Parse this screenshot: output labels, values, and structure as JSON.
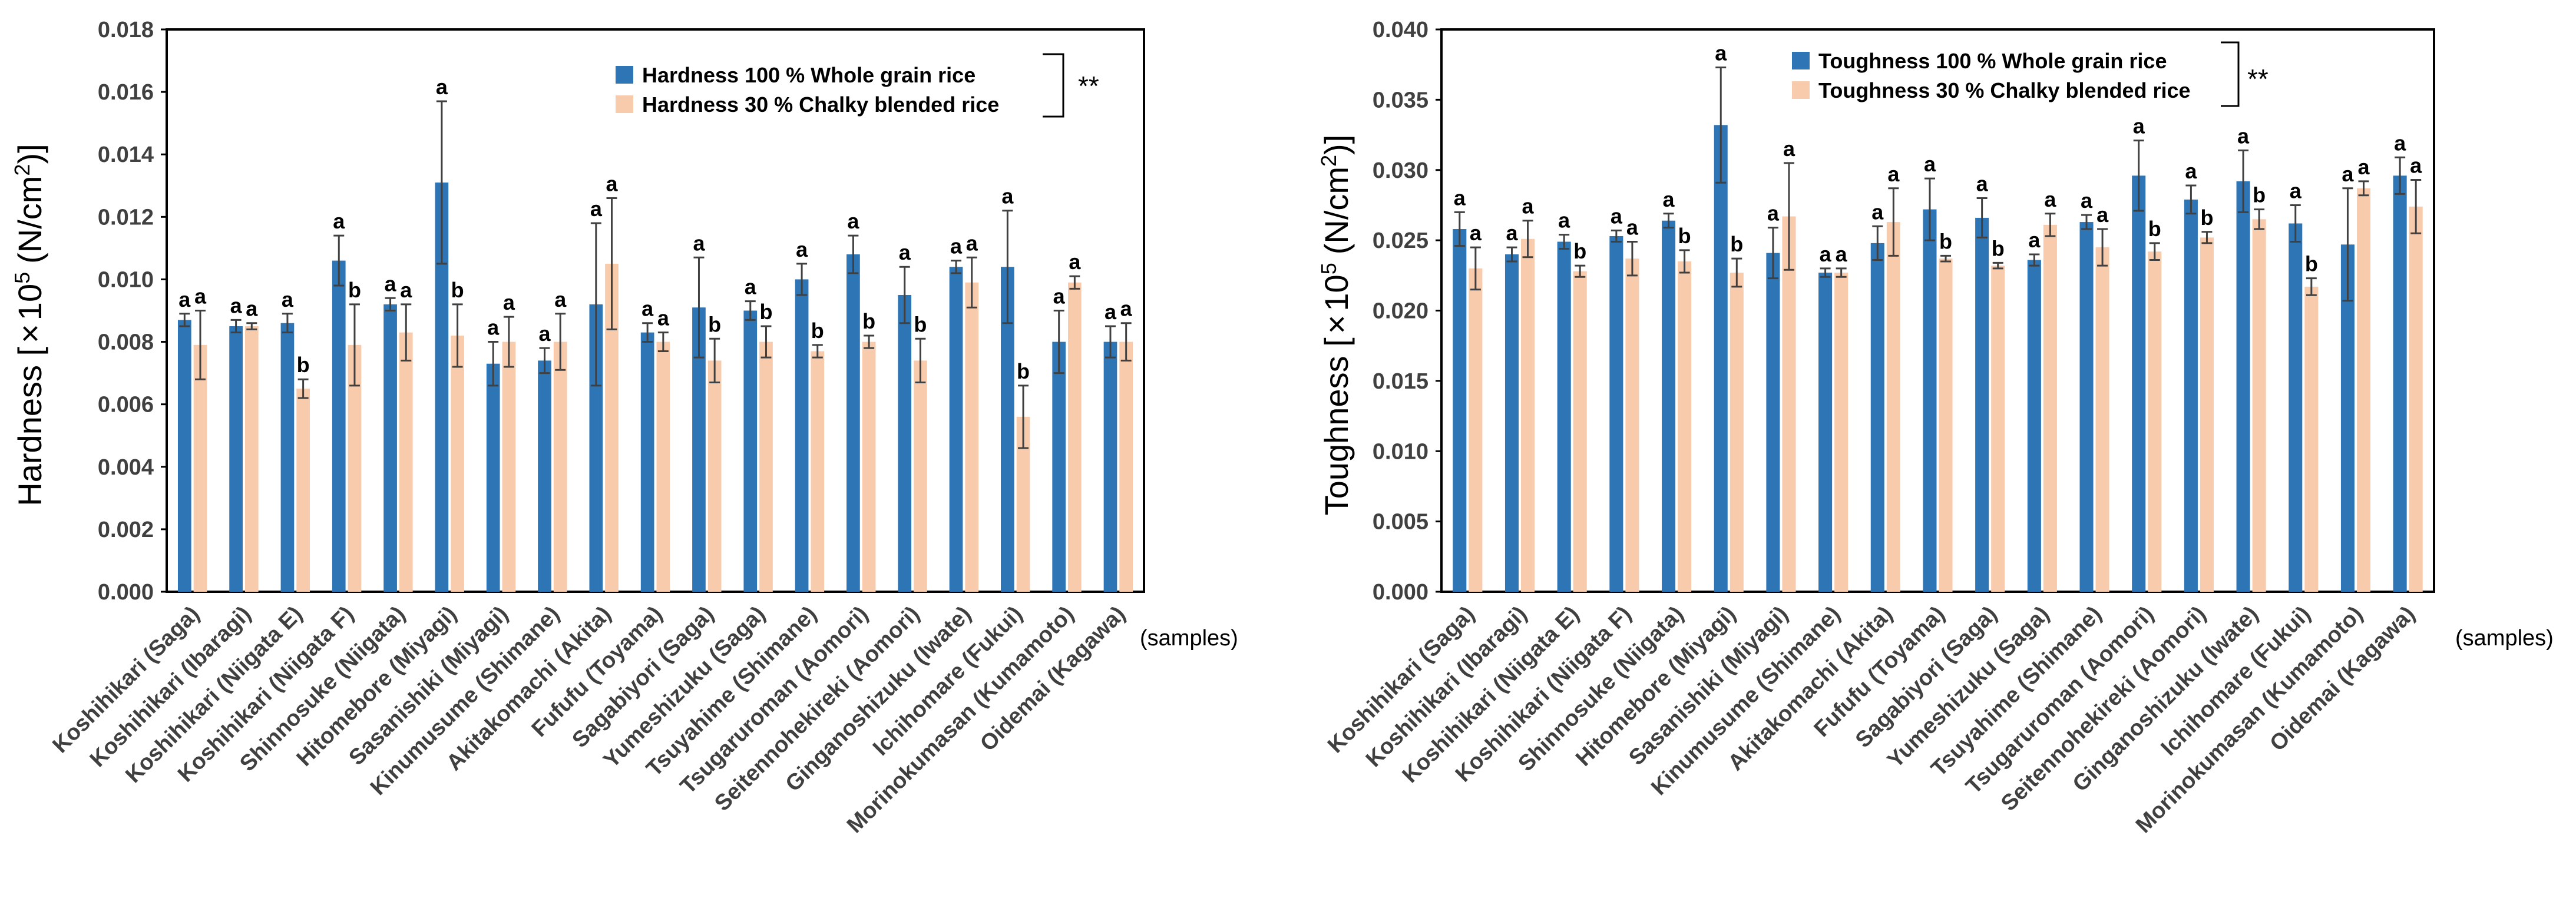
{
  "colors": {
    "whole": "#2E75B6",
    "chalky": "#F8CBAD",
    "axis": "#000000",
    "error": "#404040"
  },
  "x_unit_label": "(samples)",
  "categories": [
    "Koshihikari (Saga)",
    "Koshihikari (Ibaragi)",
    "Koshihikari (Niigata E)",
    "Koshihikari (Niigata F)",
    "Shinnosuke (Niigata)",
    "Hitomebore (Miyagi)",
    "Sasanishiki (Miyagi)",
    "Kinumusume (Shimane)",
    "Akitakomachi (Akita)",
    "Fufufu (Toyama)",
    "Sagabiyori (Saga)",
    "Yumeshizuku (Saga)",
    "Tsuyahime (Shimane)",
    "Tsugaruroman (Aomori)",
    "Seitennohekireki (Aomori)",
    "Ginganoshizuku (Iwate)",
    "Ichihomare (Fukui)",
    "Morinokumasan (Kumamoto)",
    "Oidemai (Kagawa)"
  ],
  "chart_data": [
    {
      "type": "bar",
      "ylabel_main": "Hardness [",
      "ylabel_times": "×",
      "ylabel_base": "10",
      "ylabel_exp": "5",
      "ylabel_unit": "(N/cm",
      "ylabel_unit_exp": "2",
      "ylabel_tail": ")]",
      "ylim": [
        0,
        0.018
      ],
      "yticks": [
        "0.000",
        "0.002",
        "0.004",
        "0.006",
        "0.008",
        "0.010",
        "0.012",
        "0.014",
        "0.016",
        "0.018"
      ],
      "significance": "**",
      "series": [
        {
          "name": "Hardness 100 % Whole grain rice",
          "values": [
            0.0087,
            0.0085,
            0.0086,
            0.0106,
            0.0092,
            0.0131,
            0.0073,
            0.0074,
            0.0092,
            0.0083,
            0.0091,
            0.009,
            0.01,
            0.0108,
            0.0095,
            0.0104,
            0.0104,
            0.008,
            0.008
          ],
          "errors": [
            0.0002,
            0.0002,
            0.0003,
            0.0008,
            0.0002,
            0.0026,
            0.0007,
            0.0004,
            0.0026,
            0.0003,
            0.0016,
            0.0003,
            0.0005,
            0.0006,
            0.0009,
            0.0002,
            0.0018,
            0.001,
            0.0005
          ],
          "letters": [
            "a",
            "a",
            "a",
            "a",
            "a",
            "a",
            "a",
            "a",
            "a",
            "a",
            "a",
            "a",
            "a",
            "a",
            "a",
            "a",
            "a",
            "a",
            "a"
          ]
        },
        {
          "name": "Hardness 30 % Chalky blended rice",
          "values": [
            0.0079,
            0.0085,
            0.0065,
            0.0079,
            0.0083,
            0.0082,
            0.008,
            0.008,
            0.0105,
            0.008,
            0.0074,
            0.008,
            0.0077,
            0.008,
            0.0074,
            0.0099,
            0.0056,
            0.0099,
            0.008
          ],
          "errors": [
            0.0011,
            0.0001,
            0.0003,
            0.0013,
            0.0009,
            0.001,
            0.0008,
            0.0009,
            0.0021,
            0.0003,
            0.0007,
            0.0005,
            0.0002,
            0.0002,
            0.0007,
            0.0008,
            0.001,
            0.0002,
            0.0006
          ],
          "letters": [
            "a",
            "a",
            "b",
            "b",
            "a",
            "b",
            "a",
            "a",
            "a",
            "a",
            "b",
            "b",
            "b",
            "b",
            "b",
            "a",
            "b",
            "a",
            "a"
          ]
        }
      ]
    },
    {
      "type": "bar",
      "ylabel_main": "Toughness [",
      "ylabel_times": "×",
      "ylabel_base": "10",
      "ylabel_exp": "5",
      "ylabel_unit": "(N/cm",
      "ylabel_unit_exp": "2",
      "ylabel_tail": ")]",
      "ylim": [
        0,
        0.04
      ],
      "yticks": [
        "0.000",
        "0.005",
        "0.010",
        "0.015",
        "0.020",
        "0.025",
        "0.030",
        "0.035",
        "0.040"
      ],
      "significance": "**",
      "series": [
        {
          "name": "Toughness 100 % Whole grain rice",
          "values": [
            0.0258,
            0.024,
            0.0249,
            0.0253,
            0.0264,
            0.0332,
            0.0241,
            0.0227,
            0.0248,
            0.0272,
            0.0266,
            0.0236,
            0.0263,
            0.0296,
            0.0279,
            0.0292,
            0.0262,
            0.0247,
            0.0296
          ],
          "errors": [
            0.0012,
            0.0005,
            0.0005,
            0.0004,
            0.0005,
            0.0041,
            0.0018,
            0.0003,
            0.0012,
            0.0022,
            0.0014,
            0.0004,
            0.0005,
            0.0025,
            0.001,
            0.0022,
            0.0013,
            0.004,
            0.0013
          ],
          "letters": [
            "a",
            "a",
            "a",
            "a",
            "a",
            "a",
            "a",
            "a",
            "a",
            "a",
            "a",
            "a",
            "a",
            "a",
            "a",
            "a",
            "a",
            "a",
            "a"
          ]
        },
        {
          "name": "Toughness 30 % Chalky blended rice",
          "values": [
            0.023,
            0.0251,
            0.0228,
            0.0237,
            0.0235,
            0.0227,
            0.0267,
            0.0227,
            0.0263,
            0.0237,
            0.0232,
            0.0261,
            0.0245,
            0.0242,
            0.0252,
            0.0265,
            0.0217,
            0.0287,
            0.0274
          ],
          "errors": [
            0.0015,
            0.0013,
            0.0004,
            0.0012,
            0.0008,
            0.001,
            0.0038,
            0.0003,
            0.0024,
            0.0002,
            0.0002,
            0.0008,
            0.0013,
            0.0006,
            0.0004,
            0.0007,
            0.0006,
            0.0005,
            0.0019
          ],
          "letters": [
            "a",
            "a",
            "b",
            "a",
            "b",
            "b",
            "a",
            "a",
            "a",
            "b",
            "b",
            "a",
            "a",
            "b",
            "b",
            "b",
            "b",
            "a",
            "a"
          ]
        }
      ]
    }
  ]
}
